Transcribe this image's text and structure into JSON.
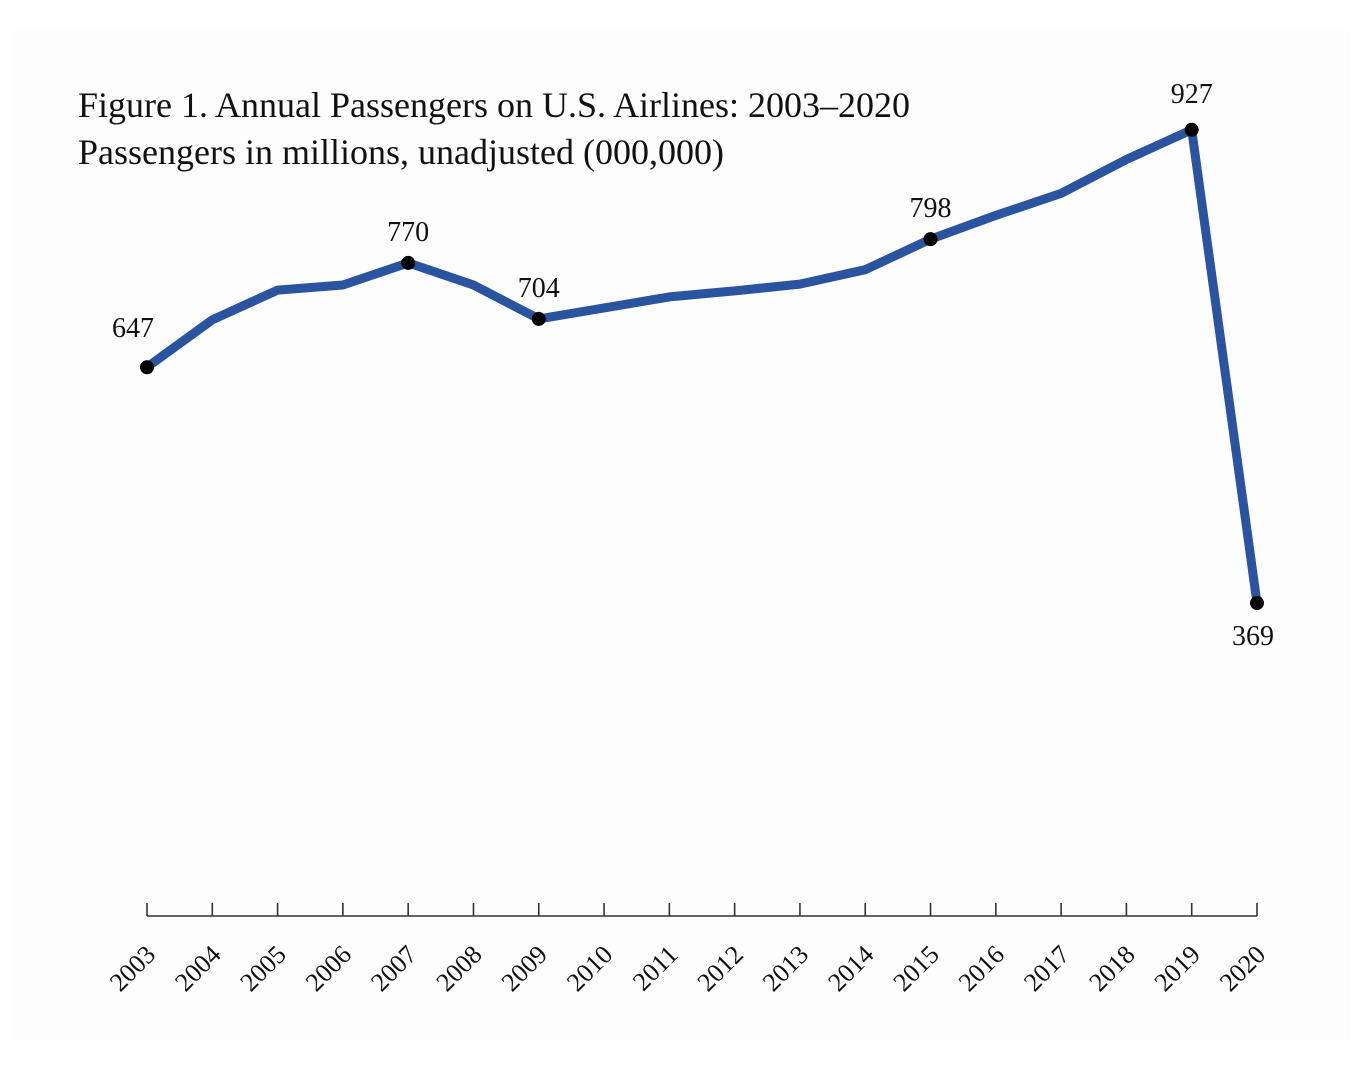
{
  "title": "Figure 1. Annual Passengers on U.S. Airlines: 2003–2020",
  "subtitle": "Passengers in millions, unadjusted (000,000)",
  "colors": {
    "line": "#2a54a0",
    "marker": "#000000",
    "axis": "#333333"
  },
  "chart_data": {
    "type": "line",
    "title": "Figure 1. Annual Passengers on U.S. Airlines: 2003–2020",
    "subtitle": "Passengers in millions, unadjusted (000,000)",
    "xlabel": "",
    "ylabel": "",
    "categories": [
      "2003",
      "2004",
      "2005",
      "2006",
      "2007",
      "2008",
      "2009",
      "2010",
      "2011",
      "2012",
      "2013",
      "2014",
      "2015",
      "2016",
      "2017",
      "2018",
      "2019",
      "2020"
    ],
    "series": [
      {
        "values": [
          647,
          703,
          738,
          744,
          770,
          744,
          704,
          717,
          730,
          737,
          745,
          762,
          798,
          826,
          852,
          892,
          927,
          369
        ]
      }
    ],
    "labeled_points": [
      {
        "category": "2003",
        "value": 647,
        "label": "647"
      },
      {
        "category": "2007",
        "value": 770,
        "label": "770"
      },
      {
        "category": "2009",
        "value": 704,
        "label": "704"
      },
      {
        "category": "2015",
        "value": 798,
        "label": "798"
      },
      {
        "category": "2019",
        "value": 927,
        "label": "927"
      },
      {
        "category": "2020",
        "value": 369,
        "label": "369"
      }
    ],
    "ylim": [
      0,
      1080
    ],
    "grid": false,
    "legend": "none"
  }
}
